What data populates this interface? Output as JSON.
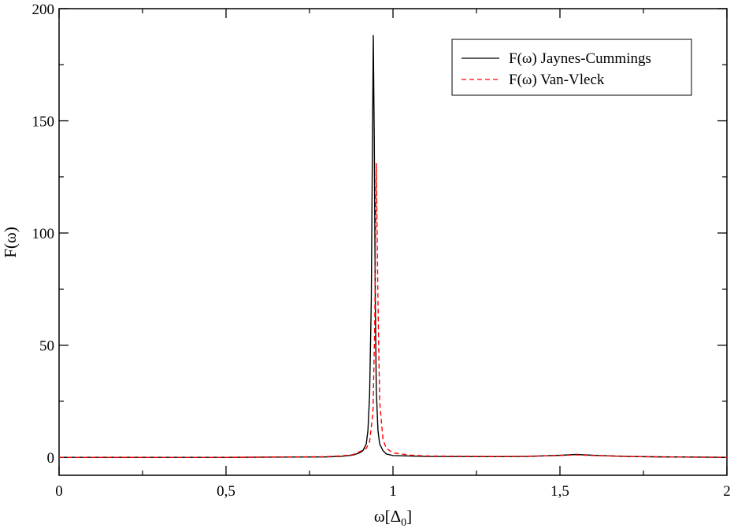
{
  "chart_data": {
    "type": "line",
    "title": "",
    "xlabel": "ω[Δ",
    "xlabel_sub": "0",
    "xlabel_close": "]",
    "ylabel": "F(ω)",
    "xlim": [
      0,
      2
    ],
    "ylim": [
      -8,
      200
    ],
    "grid": false,
    "legend_position": "top-right",
    "x_ticks": [
      {
        "value": 0,
        "label": "0"
      },
      {
        "value": 0.5,
        "label": "0,5"
      },
      {
        "value": 1,
        "label": "1"
      },
      {
        "value": 1.5,
        "label": "1,5"
      },
      {
        "value": 2,
        "label": "2"
      }
    ],
    "y_ticks": [
      {
        "value": 0,
        "label": "0"
      },
      {
        "value": 50,
        "label": "50"
      },
      {
        "value": 100,
        "label": "100"
      },
      {
        "value": 150,
        "label": "150"
      },
      {
        "value": 200,
        "label": "200"
      }
    ],
    "series": [
      {
        "name": "F(ω) Jaynes-Cummings",
        "color": "#000000",
        "dash": "solid",
        "points": [
          [
            0,
            0
          ],
          [
            0.5,
            0
          ],
          [
            0.8,
            0.2
          ],
          [
            0.85,
            0.5
          ],
          [
            0.88,
            1
          ],
          [
            0.9,
            2
          ],
          [
            0.91,
            3
          ],
          [
            0.92,
            6
          ],
          [
            0.925,
            12
          ],
          [
            0.93,
            28
          ],
          [
            0.935,
            70
          ],
          [
            0.938,
            130
          ],
          [
            0.941,
            188
          ],
          [
            0.944,
            140
          ],
          [
            0.947,
            70
          ],
          [
            0.95,
            30
          ],
          [
            0.955,
            12
          ],
          [
            0.96,
            6
          ],
          [
            0.97,
            3
          ],
          [
            0.98,
            1.5
          ],
          [
            1.0,
            0.8
          ],
          [
            1.1,
            0.4
          ],
          [
            1.3,
            0.3
          ],
          [
            1.4,
            0.4
          ],
          [
            1.5,
            0.9
          ],
          [
            1.55,
            1.3
          ],
          [
            1.6,
            0.9
          ],
          [
            1.7,
            0.4
          ],
          [
            1.8,
            0.2
          ],
          [
            2.0,
            0
          ]
        ]
      },
      {
        "name": "F(ω) Van-Vleck",
        "color": "#ff0000",
        "dash": "dashed",
        "points": [
          [
            0,
            0
          ],
          [
            0.5,
            0
          ],
          [
            0.8,
            0.3
          ],
          [
            0.85,
            0.7
          ],
          [
            0.88,
            1.2
          ],
          [
            0.9,
            2.5
          ],
          [
            0.92,
            4
          ],
          [
            0.93,
            7
          ],
          [
            0.94,
            20
          ],
          [
            0.945,
            55
          ],
          [
            0.95,
            131
          ],
          [
            0.955,
            70
          ],
          [
            0.96,
            25
          ],
          [
            0.97,
            8
          ],
          [
            0.98,
            4
          ],
          [
            1.0,
            2
          ],
          [
            1.05,
            1
          ],
          [
            1.1,
            0.6
          ],
          [
            1.3,
            0.4
          ],
          [
            1.4,
            0.5
          ],
          [
            1.5,
            0.8
          ],
          [
            1.55,
            1.1
          ],
          [
            1.6,
            0.8
          ],
          [
            1.7,
            0.4
          ],
          [
            1.8,
            0.2
          ],
          [
            2.0,
            0
          ]
        ]
      }
    ]
  }
}
